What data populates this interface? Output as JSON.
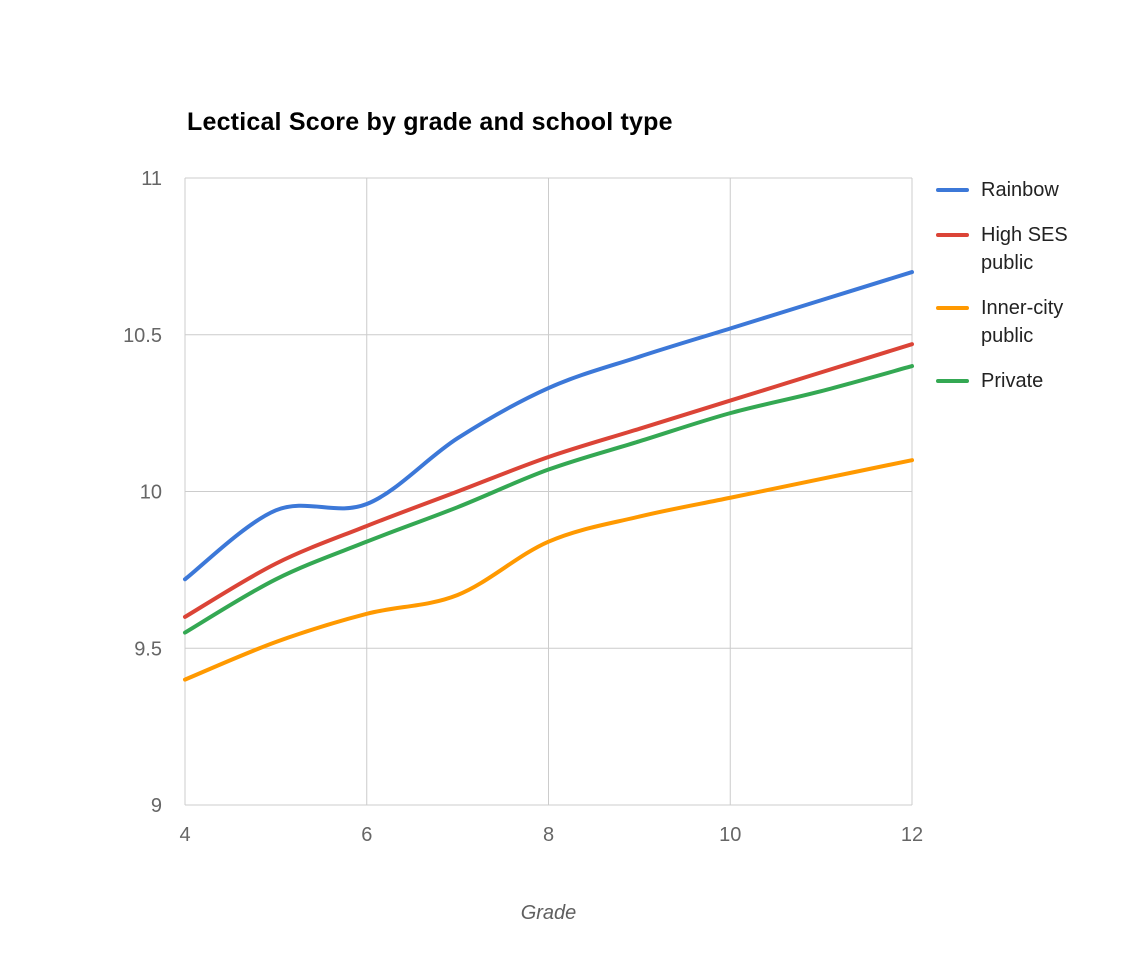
{
  "chart_data": {
    "type": "line",
    "smooth": true,
    "title": "Lectical Score by grade and school type",
    "xlabel": "Grade",
    "ylabel": "",
    "x": [
      4,
      5,
      6,
      7,
      8,
      9,
      10,
      11,
      12
    ],
    "series": [
      {
        "name": "Rainbow",
        "color": "#3C78D8",
        "values": [
          9.72,
          9.94,
          9.96,
          10.17,
          10.33,
          10.43,
          10.52,
          10.61,
          10.7
        ]
      },
      {
        "name": "High SES public",
        "color": "#DB4437",
        "values": [
          9.6,
          9.77,
          9.89,
          10.0,
          10.11,
          10.2,
          10.29,
          10.38,
          10.47
        ]
      },
      {
        "name": "Inner-city public",
        "color": "#FF9900",
        "values": [
          9.4,
          9.52,
          9.61,
          9.67,
          9.84,
          9.92,
          9.98,
          10.04,
          10.1
        ]
      },
      {
        "name": "Private",
        "color": "#34A853",
        "values": [
          9.55,
          9.72,
          9.84,
          9.95,
          10.07,
          10.16,
          10.25,
          10.32,
          10.4
        ]
      }
    ],
    "xlim": [
      4,
      12
    ],
    "ylim": [
      9,
      11
    ],
    "x_ticks": [
      4,
      6,
      8,
      10,
      12
    ],
    "y_ticks": [
      9,
      9.5,
      10,
      10.5,
      11
    ],
    "x_tick_labels": [
      "4",
      "6",
      "8",
      "10",
      "12"
    ],
    "y_tick_labels": [
      "9",
      "9.5",
      "10",
      "10.5",
      "11"
    ],
    "grid": true,
    "legend_position": "right"
  },
  "styles": {
    "background": "#ffffff",
    "grid_color": "#cccccc",
    "tick_label_color": "#666666",
    "title_color": "#000000",
    "axis_title_color": "#5f5f5f",
    "legend_text_color": "#222222"
  }
}
